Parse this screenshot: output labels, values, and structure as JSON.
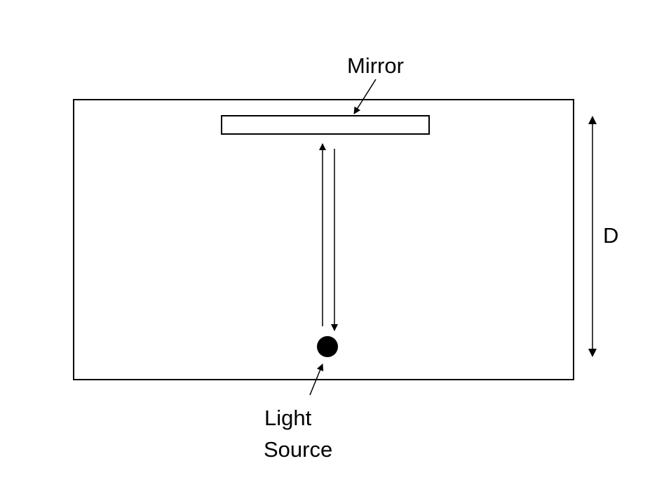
{
  "labels": {
    "mirror": "Mirror",
    "distance": "D",
    "light_source_line1": "Light",
    "light_source_line2": "Source"
  },
  "colors": {
    "stroke": "#000000",
    "fill": "#ffffff",
    "light_source": "#000000"
  }
}
